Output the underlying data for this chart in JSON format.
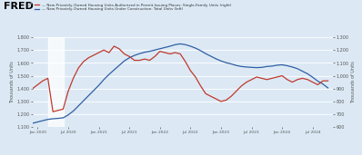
{
  "legend_red": "— New Privately-Owned Housing Units Authorized in Permit-Issuing Places: Single-Family Units (right)",
  "legend_blue": "— New Privately-Owned Housing Units Under Construction: Total Units (left)",
  "ylabel_left": "Thousands of Units",
  "ylabel_right": "Thousands of Units",
  "ylim_left": [
    1100,
    1800
  ],
  "ylim_right": [
    600,
    1300
  ],
  "yticks_left": [
    1100,
    1200,
    1300,
    1400,
    1500,
    1600,
    1700,
    1800
  ],
  "yticks_right": [
    600,
    700,
    800,
    900,
    1000,
    1100,
    1200,
    1300
  ],
  "recession_start": 2020.17,
  "recession_end": 2020.42,
  "bg_color": "#dce9f5",
  "line_color_red": "#c0392b",
  "line_color_blue": "#2e5fa3",
  "dates": [
    2019.917,
    2020.0,
    2020.083,
    2020.167,
    2020.25,
    2020.333,
    2020.417,
    2020.5,
    2020.583,
    2020.667,
    2020.75,
    2020.833,
    2020.917,
    2021.0,
    2021.083,
    2021.167,
    2021.25,
    2021.333,
    2021.417,
    2021.5,
    2021.583,
    2021.667,
    2021.75,
    2021.833,
    2021.917,
    2022.0,
    2022.083,
    2022.167,
    2022.25,
    2022.333,
    2022.417,
    2022.5,
    2022.583,
    2022.667,
    2022.75,
    2022.833,
    2022.917,
    2023.0,
    2023.083,
    2023.167,
    2023.25,
    2023.333,
    2023.417,
    2023.5,
    2023.583,
    2023.667,
    2023.75,
    2023.833,
    2023.917,
    2024.0,
    2024.083,
    2024.167,
    2024.25,
    2024.333,
    2024.417,
    2024.5,
    2024.583,
    2024.667,
    2024.75
  ],
  "red_data": [
    900,
    930,
    960,
    980,
    720,
    730,
    740,
    880,
    980,
    1060,
    1110,
    1140,
    1160,
    1180,
    1200,
    1180,
    1230,
    1210,
    1170,
    1150,
    1120,
    1120,
    1130,
    1120,
    1150,
    1190,
    1180,
    1170,
    1180,
    1170,
    1110,
    1040,
    990,
    920,
    860,
    840,
    820,
    800,
    810,
    840,
    880,
    920,
    950,
    970,
    990,
    980,
    970,
    980,
    990,
    1000,
    970,
    950,
    970,
    980,
    970,
    950,
    930,
    960,
    960
  ],
  "blue_data": [
    1130,
    1140,
    1150,
    1160,
    1165,
    1168,
    1172,
    1195,
    1225,
    1265,
    1305,
    1345,
    1385,
    1425,
    1470,
    1510,
    1545,
    1580,
    1615,
    1640,
    1658,
    1672,
    1683,
    1690,
    1700,
    1710,
    1720,
    1730,
    1742,
    1748,
    1742,
    1730,
    1715,
    1695,
    1672,
    1652,
    1632,
    1615,
    1602,
    1592,
    1580,
    1572,
    1568,
    1565,
    1563,
    1565,
    1572,
    1575,
    1582,
    1585,
    1578,
    1568,
    1555,
    1535,
    1515,
    1488,
    1458,
    1435,
    1405
  ],
  "xlim": [
    2019.917,
    2024.833
  ],
  "xtick_positions": [
    2020.0,
    2020.5,
    2021.0,
    2021.5,
    2022.0,
    2022.5,
    2023.0,
    2023.5,
    2024.0,
    2024.5
  ],
  "xtick_labels": [
    "Jan 2020",
    "Jul 2020",
    "Jan 2021",
    "Jul 2021",
    "Jan 2022",
    "Jul 2022",
    "Jan 2023",
    "Jul 2023",
    "Jan 2024",
    "Jul 2024"
  ]
}
